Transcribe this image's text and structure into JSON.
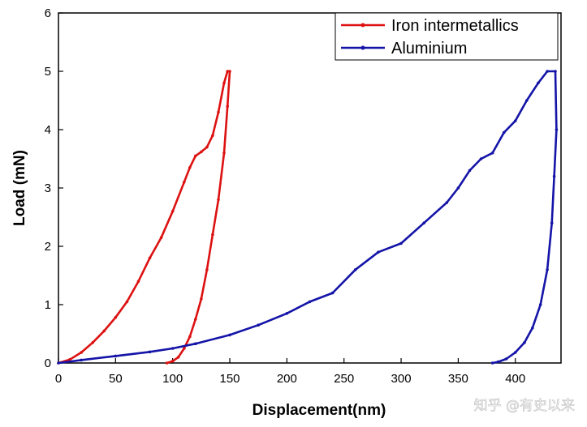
{
  "chart_data": {
    "type": "line",
    "title": "",
    "xlabel": "Displacement(nm)",
    "ylabel": "Load (mN)",
    "xlim": [
      0,
      440
    ],
    "ylim": [
      0,
      6
    ],
    "xticks": [
      0,
      50,
      100,
      150,
      200,
      250,
      300,
      350,
      400
    ],
    "yticks": [
      0,
      1,
      2,
      3,
      4,
      5,
      6
    ],
    "legend_position": "top-right",
    "series": [
      {
        "name": "Iron intermetallics",
        "color": "#dd1111",
        "x": [
          0,
          10,
          20,
          30,
          40,
          50,
          60,
          70,
          80,
          90,
          100,
          110,
          115,
          120,
          125,
          130,
          135,
          140,
          145,
          148,
          150,
          148,
          145,
          140,
          135,
          130,
          125,
          120,
          115,
          110,
          105,
          100,
          95
        ],
        "y": [
          0,
          0.06,
          0.18,
          0.35,
          0.55,
          0.78,
          1.05,
          1.4,
          1.8,
          2.15,
          2.6,
          3.1,
          3.35,
          3.55,
          3.62,
          3.7,
          3.9,
          4.3,
          4.8,
          5.0,
          5.0,
          4.4,
          3.6,
          2.8,
          2.2,
          1.6,
          1.1,
          0.75,
          0.45,
          0.25,
          0.1,
          0.03,
          0.0
        ]
      },
      {
        "name": "Aluminium",
        "color": "#1414a8",
        "x": [
          0,
          20,
          50,
          80,
          100,
          120,
          150,
          175,
          200,
          220,
          240,
          260,
          280,
          300,
          320,
          340,
          350,
          360,
          370,
          380,
          390,
          400,
          410,
          420,
          428,
          435,
          436,
          434,
          432,
          428,
          422,
          415,
          408,
          400,
          392,
          385,
          380
        ],
        "y": [
          0,
          0.05,
          0.12,
          0.19,
          0.25,
          0.33,
          0.48,
          0.65,
          0.85,
          1.05,
          1.2,
          1.6,
          1.9,
          2.05,
          2.4,
          2.75,
          3.0,
          3.3,
          3.5,
          3.6,
          3.95,
          4.15,
          4.5,
          4.8,
          5.0,
          5.0,
          4.0,
          3.2,
          2.4,
          1.6,
          1.0,
          0.6,
          0.35,
          0.18,
          0.07,
          0.02,
          0.0
        ]
      }
    ]
  },
  "watermark": "知乎 @有史以来"
}
